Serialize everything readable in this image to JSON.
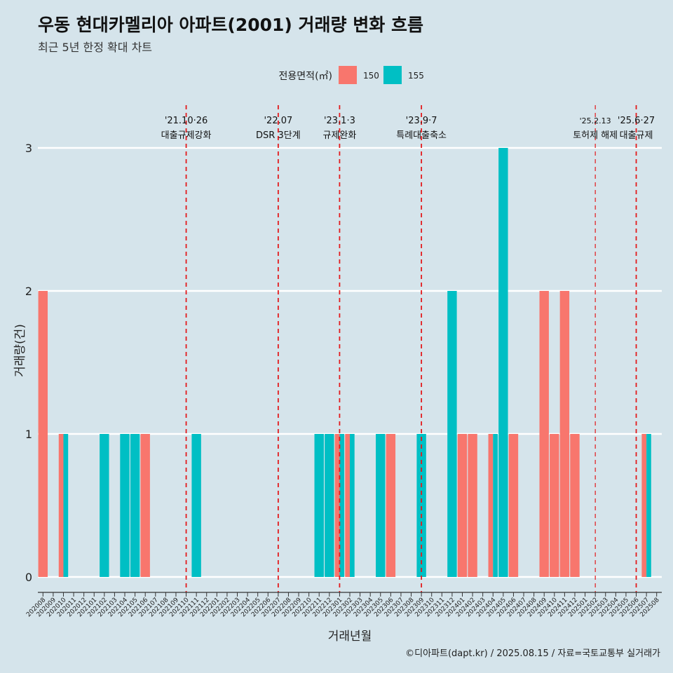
{
  "title": "우동 현대카멜리아 아파트(2001) 거래량 변화 흐름",
  "subtitle": "최근 5년 한정 확대 차트",
  "caption": "©디아파트(dapt.kr) / 2025.08.15 / 자료=국토교통부 실거래가",
  "colors": {
    "background": "#d5e4eb",
    "series_150": "#f8766d",
    "series_155": "#00bfc4",
    "event_line": "#e31a1c",
    "grid": "#ffffff"
  },
  "chart_data": {
    "type": "bar",
    "xlabel": "거래년월",
    "ylabel": "거래량(건)",
    "ylim": [
      0,
      3
    ],
    "yticks": [
      0,
      1,
      2,
      3
    ],
    "legend": {
      "title": "전용면적(㎡)",
      "position": "top"
    },
    "categories": [
      "202008",
      "202009",
      "202010",
      "202011",
      "202012",
      "202101",
      "202102",
      "202103",
      "202104",
      "202105",
      "202106",
      "202107",
      "202108",
      "202109",
      "202110",
      "202111",
      "202112",
      "202201",
      "202202",
      "202203",
      "202204",
      "202205",
      "202206",
      "202207",
      "202208",
      "202209",
      "202210",
      "202211",
      "202212",
      "202301",
      "202302",
      "202303",
      "202304",
      "202305",
      "202306",
      "202307",
      "202308",
      "202309",
      "202310",
      "202311",
      "202312",
      "202401",
      "202402",
      "202403",
      "202404",
      "202405",
      "202406",
      "202407",
      "202408",
      "202409",
      "202410",
      "202411",
      "202412",
      "202501",
      "202502",
      "202503",
      "202504",
      "202505",
      "202506",
      "202507",
      "202508"
    ],
    "series": [
      {
        "name": "150",
        "values": [
          2,
          0,
          1,
          0,
          0,
          0,
          0,
          0,
          0,
          0,
          1,
          0,
          0,
          0,
          0,
          0,
          0,
          0,
          0,
          0,
          0,
          0,
          0,
          0,
          0,
          0,
          0,
          0,
          0,
          1,
          1,
          0,
          0,
          0,
          1,
          0,
          0,
          0,
          0,
          0,
          0,
          1,
          1,
          0,
          1,
          0,
          1,
          0,
          0,
          2,
          1,
          2,
          1,
          0,
          0,
          0,
          0,
          0,
          0,
          1,
          0
        ]
      },
      {
        "name": "155",
        "values": [
          0,
          0,
          1,
          0,
          0,
          0,
          1,
          0,
          1,
          1,
          0,
          0,
          0,
          0,
          0,
          1,
          0,
          0,
          0,
          0,
          0,
          0,
          0,
          0,
          0,
          0,
          0,
          1,
          1,
          1,
          1,
          0,
          0,
          1,
          0,
          0,
          0,
          1,
          0,
          0,
          2,
          0,
          0,
          0,
          1,
          3,
          0,
          0,
          0,
          0,
          0,
          0,
          0,
          0,
          0,
          0,
          0,
          0,
          0,
          1,
          0
        ]
      }
    ],
    "events": [
      {
        "date": "202110",
        "label_top": "'21.10·26",
        "label_bottom": "대출규제강화"
      },
      {
        "date": "202207",
        "label_top": "'22.07",
        "label_bottom": "DSR 3단계"
      },
      {
        "date": "202301",
        "label_top": "'23.1·3",
        "label_bottom": "규제완화"
      },
      {
        "date": "202309",
        "label_top": "'23.9·7",
        "label_bottom": "특례대출축소"
      },
      {
        "date": "202502",
        "label_top": "'25.2.13",
        "label_bottom": "토허제 해제"
      },
      {
        "date": "202506",
        "label_top": "'25.6·27",
        "label_bottom": "대출규제"
      }
    ]
  }
}
